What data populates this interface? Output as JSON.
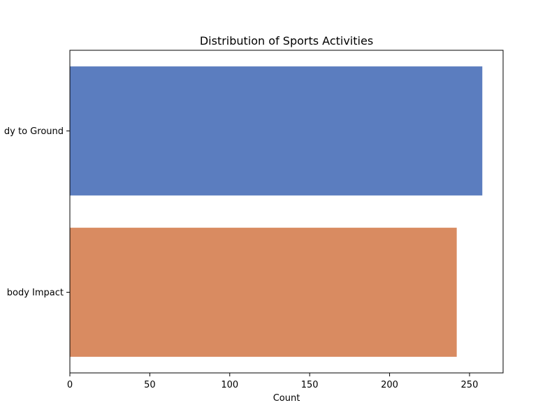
{
  "chart_data": {
    "type": "bar",
    "orientation": "horizontal",
    "title": "Distribution of Sports Activities",
    "xlabel": "Count",
    "ylabel": "",
    "categories": [
      "dy to Ground",
      "body Impact"
    ],
    "values": [
      258,
      242
    ],
    "colors": [
      "#5b7dbf",
      "#d98b61"
    ],
    "xlim": [
      0,
      271
    ],
    "xticks": [
      0,
      50,
      100,
      150,
      200,
      250
    ],
    "grid": false,
    "legend": "none"
  }
}
